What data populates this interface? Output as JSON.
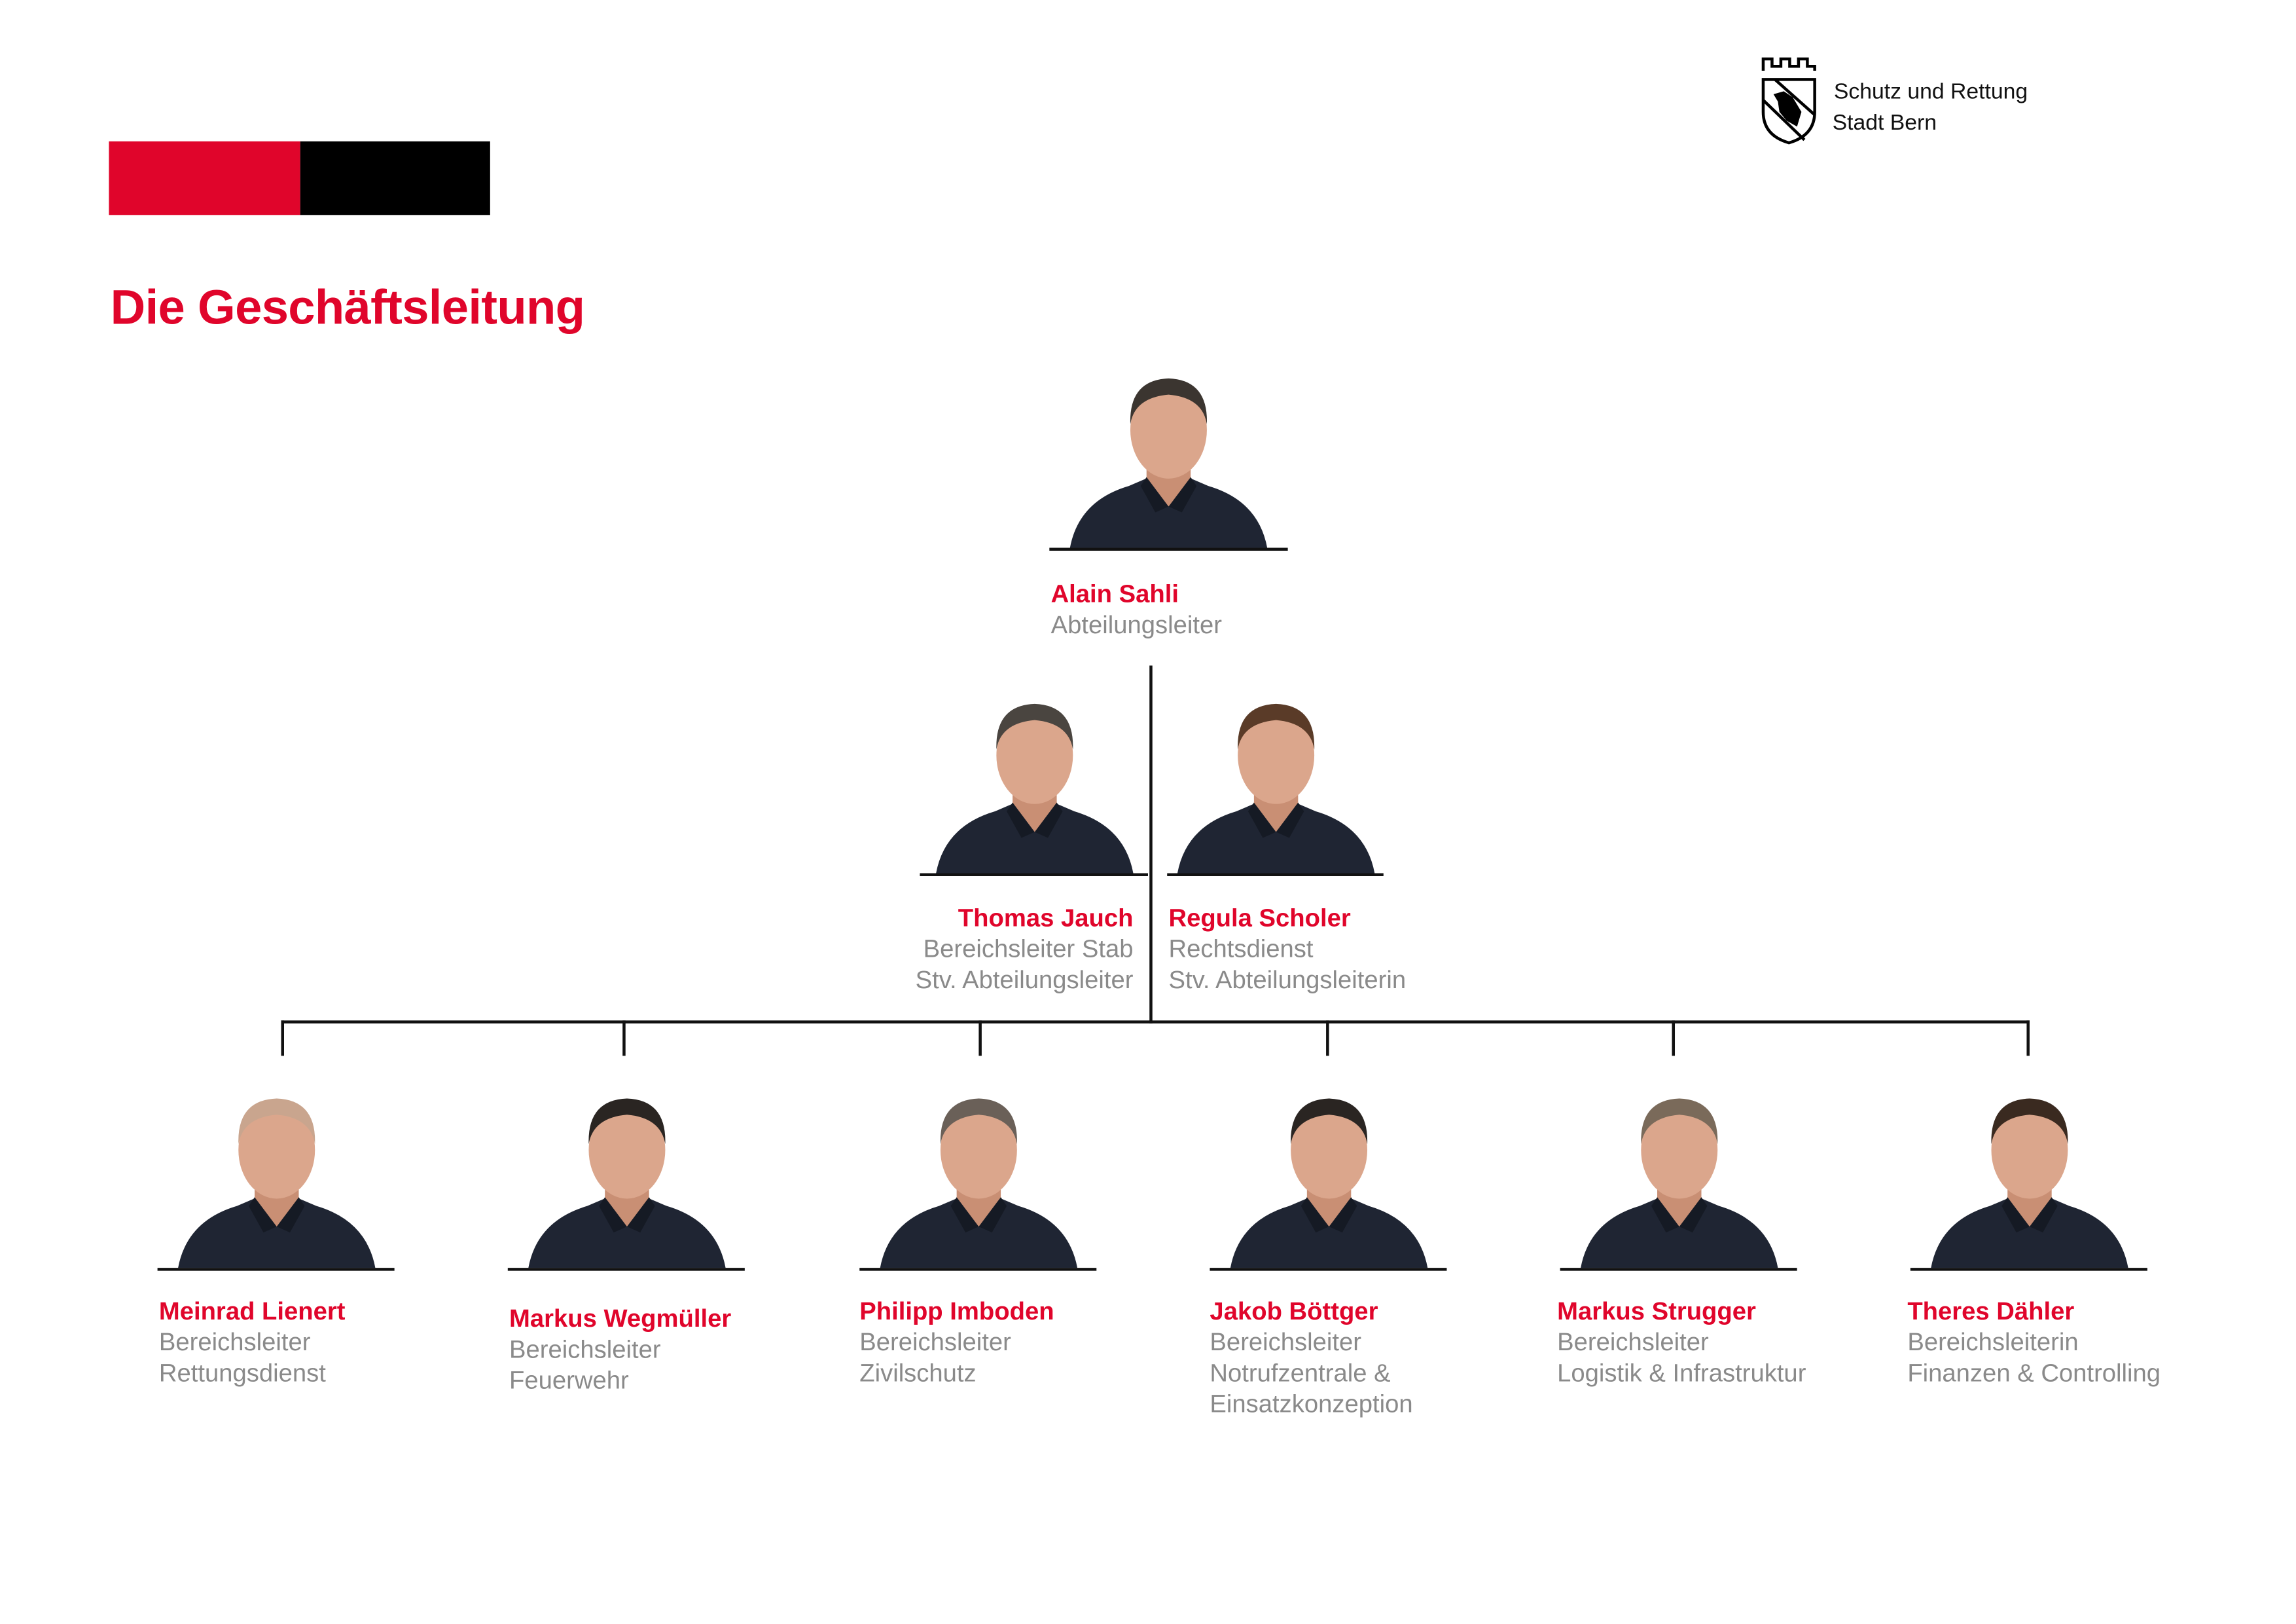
{
  "colors": {
    "accent": "#e0052b",
    "black": "#000000",
    "role_text": "#8a8a8a"
  },
  "header": {
    "title": "Die Geschäftsleitung",
    "logo": {
      "icon": "bern-coat-of-arms-icon",
      "line1": "Schutz und Rettung",
      "line2": "Stadt Bern"
    }
  },
  "head": {
    "name": "Alain Sahli",
    "roles": [
      "Abteilungsleiter"
    ]
  },
  "deputies": [
    {
      "name": "Thomas Jauch",
      "roles": [
        "Bereichsleiter Stab",
        "Stv. Abteilungsleiter"
      ]
    },
    {
      "name": "Regula Scholer",
      "roles": [
        "Rechtsdienst",
        "Stv. Abteilungsleiterin"
      ]
    }
  ],
  "members": [
    {
      "name": "Meinrad Lienert",
      "roles": [
        "Bereichsleiter",
        "Rettungsdienst"
      ]
    },
    {
      "name": "Markus Wegmüller",
      "roles": [
        "Bereichsleiter",
        "Feuerwehr"
      ]
    },
    {
      "name": "Philipp Imboden",
      "roles": [
        "Bereichsleiter",
        "Zivilschutz"
      ]
    },
    {
      "name": "Jakob Böttger",
      "roles": [
        "Bereichsleiter",
        "Notrufzentrale &",
        "Einsatzkonzeption"
      ]
    },
    {
      "name": "Markus Strugger",
      "roles": [
        "Bereichsleiter",
        "Logistik & Infrastruktur"
      ]
    },
    {
      "name": "Theres Dähler",
      "roles": [
        "Bereichsleiterin",
        "Finanzen & Controlling"
      ]
    }
  ]
}
